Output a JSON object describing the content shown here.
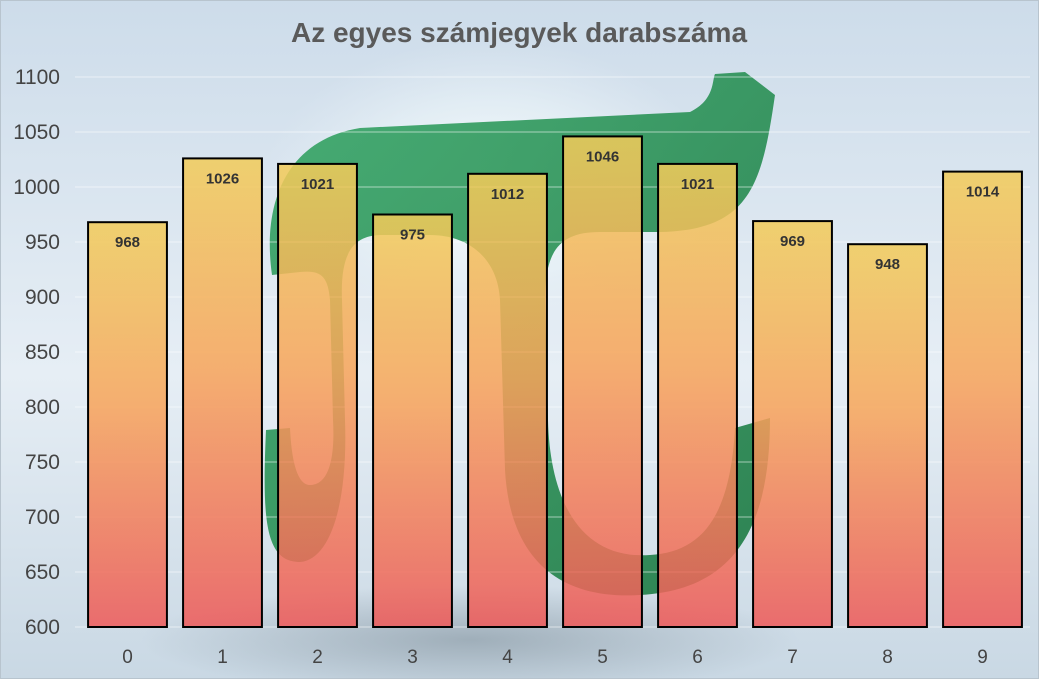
{
  "chart_data": {
    "type": "bar",
    "title": "Az egyes számjegyek darabszáma",
    "xlabel": "",
    "ylabel": "",
    "categories": [
      "0",
      "1",
      "2",
      "3",
      "4",
      "5",
      "6",
      "7",
      "8",
      "9"
    ],
    "values": [
      968,
      1026,
      1021,
      975,
      1012,
      1046,
      1021,
      969,
      948,
      1014
    ],
    "ylim": [
      600,
      1100
    ],
    "yticks": [
      600,
      650,
      700,
      750,
      800,
      850,
      900,
      950,
      1000,
      1050,
      1100
    ],
    "grid": true,
    "legend": "none",
    "colors": {
      "bar_top": "#f2cc5a",
      "bar_mid": "#f7a45a",
      "bar_bottom": "#ee5a5a",
      "bar_outline": "#000000",
      "pi_symbol": "#2e9a5a",
      "background": "#d6e3ef"
    },
    "background_icon": "pi-symbol"
  }
}
